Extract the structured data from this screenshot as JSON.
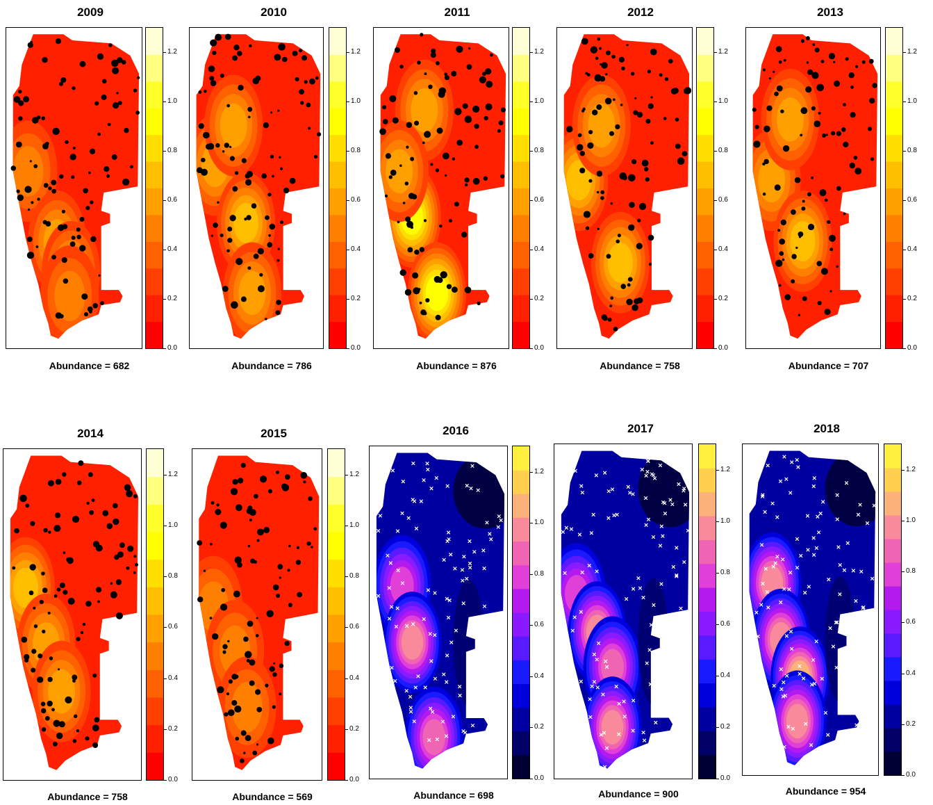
{
  "chart_data": {
    "type": "heatmap",
    "colorbar_ticks": [
      "0.0",
      "0.2",
      "0.4",
      "0.6",
      "0.8",
      "1.0",
      "1.2"
    ],
    "colorbar_range": [
      0,
      1.3
    ],
    "legend_placement": "right of each map",
    "palettes": {
      "heat": [
        "#FF0000",
        "#FF2000",
        "#FF4000",
        "#FF6000",
        "#FF8000",
        "#FFA000",
        "#FFBF00",
        "#FFDF00",
        "#FFFF00",
        "#FFFF2A",
        "#FFFF80",
        "#FFFFD5"
      ],
      "blue": [
        "#000033",
        "#000066",
        "#0000A0",
        "#0000DD",
        "#1A1AFF",
        "#5A1AFF",
        "#8A1AFF",
        "#B41AEE",
        "#E040D8",
        "#F064B4",
        "#F88A9C",
        "#FCB07A",
        "#FFD050",
        "#FFF040"
      ]
    },
    "panels": [
      {
        "title": "2009",
        "abundance": "Abundance = 682",
        "palette": "heat",
        "marker": "dot",
        "seed": 11,
        "hotspots": [
          [
            0.12,
            0.45,
            0.35
          ],
          [
            0.35,
            0.68,
            0.45
          ],
          [
            0.46,
            0.78,
            0.5
          ],
          [
            0.45,
            0.86,
            0.4
          ]
        ]
      },
      {
        "title": "2010",
        "abundance": "Abundance = 786",
        "palette": "heat",
        "marker": "dot",
        "seed": 23,
        "hotspots": [
          [
            0.15,
            0.43,
            0.5
          ],
          [
            0.3,
            0.3,
            0.45
          ],
          [
            0.4,
            0.62,
            0.55
          ],
          [
            0.45,
            0.85,
            0.5
          ]
        ]
      },
      {
        "title": "2011",
        "abundance": "Abundance = 876",
        "palette": "heat",
        "marker": "dot",
        "seed": 37,
        "hotspots": [
          [
            0.25,
            0.6,
            0.8
          ],
          [
            0.45,
            0.85,
            0.85
          ],
          [
            0.35,
            0.25,
            0.5
          ],
          [
            0.15,
            0.45,
            0.5
          ]
        ]
      },
      {
        "title": "2012",
        "abundance": "Abundance = 758",
        "palette": "heat",
        "marker": "dot",
        "seed": 41,
        "hotspots": [
          [
            0.12,
            0.48,
            0.55
          ],
          [
            0.3,
            0.3,
            0.5
          ],
          [
            0.45,
            0.75,
            0.55
          ]
        ]
      },
      {
        "title": "2013",
        "abundance": "Abundance = 707",
        "palette": "heat",
        "marker": "dot",
        "seed": 53,
        "hotspots": [
          [
            0.15,
            0.48,
            0.45
          ],
          [
            0.3,
            0.28,
            0.45
          ],
          [
            0.4,
            0.68,
            0.55
          ]
        ]
      },
      {
        "title": "2014",
        "abundance": "Abundance = 758",
        "palette": "heat",
        "marker": "dot",
        "seed": 61,
        "hotspots": [
          [
            0.12,
            0.42,
            0.55
          ],
          [
            0.28,
            0.6,
            0.5
          ],
          [
            0.4,
            0.75,
            0.45
          ]
        ]
      },
      {
        "title": "2015",
        "abundance": "Abundance = 569",
        "palette": "heat",
        "marker": "dot",
        "seed": 71,
        "hotspots": [
          [
            0.12,
            0.48,
            0.4
          ],
          [
            0.3,
            0.62,
            0.35
          ],
          [
            0.4,
            0.8,
            0.35
          ]
        ]
      },
      {
        "title": "2016",
        "abundance": "Abundance = 698",
        "palette": "blue",
        "marker": "cross",
        "seed": 83,
        "hotspots": [
          [
            0.2,
            0.42,
            0.75
          ],
          [
            0.28,
            0.6,
            0.85
          ],
          [
            0.45,
            0.9,
            0.8
          ]
        ]
      },
      {
        "title": "2017",
        "abundance": "Abundance = 900",
        "palette": "blue",
        "marker": "cross",
        "seed": 97,
        "hotspots": [
          [
            0.12,
            0.45,
            0.75
          ],
          [
            0.28,
            0.57,
            0.85
          ],
          [
            0.4,
            0.68,
            0.8
          ],
          [
            0.4,
            0.87,
            0.9
          ]
        ]
      },
      {
        "title": "2018",
        "abundance": "Abundance = 954",
        "palette": "blue",
        "marker": "cross",
        "seed": 101,
        "hotspots": [
          [
            0.18,
            0.42,
            0.85
          ],
          [
            0.25,
            0.6,
            0.85
          ],
          [
            0.4,
            0.72,
            0.95
          ],
          [
            0.38,
            0.86,
            0.85
          ]
        ]
      }
    ]
  }
}
